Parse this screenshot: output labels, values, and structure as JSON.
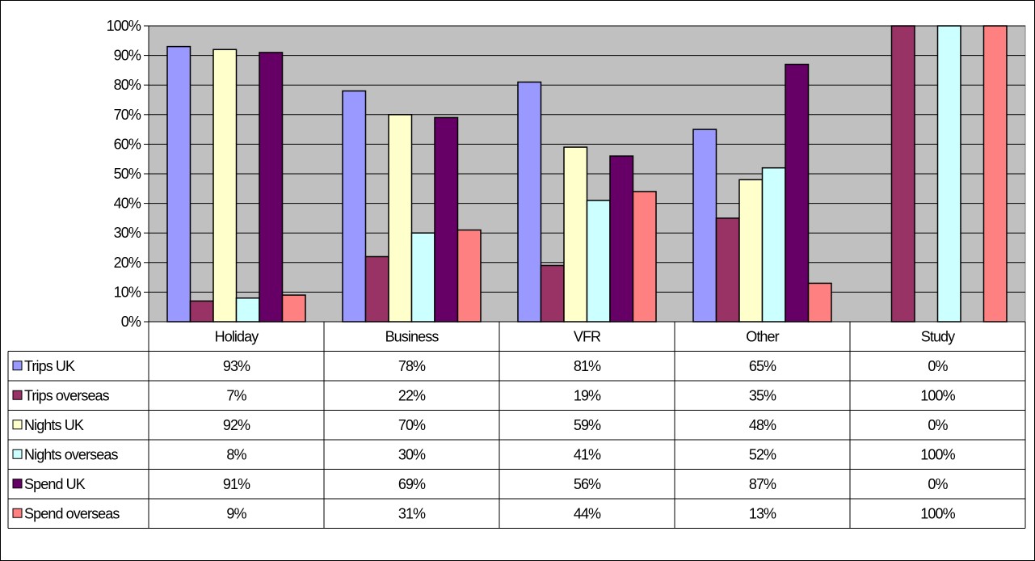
{
  "chart_data": {
    "type": "bar",
    "categories": [
      "Holiday",
      "Business",
      "VFR",
      "Other",
      "Study"
    ],
    "series": [
      {
        "name": "Trips UK",
        "color": "#9999FF",
        "values": [
          93,
          78,
          81,
          65,
          0
        ],
        "labels": [
          "93%",
          "78%",
          "81%",
          "65%",
          "0%"
        ]
      },
      {
        "name": "Trips overseas",
        "color": "#993366",
        "values": [
          7,
          22,
          19,
          35,
          100
        ],
        "labels": [
          "7%",
          "22%",
          "19%",
          "35%",
          "100%"
        ]
      },
      {
        "name": "Nights UK",
        "color": "#FFFFCC",
        "values": [
          92,
          70,
          59,
          48,
          0
        ],
        "labels": [
          "92%",
          "70%",
          "59%",
          "48%",
          "0%"
        ]
      },
      {
        "name": "Nights overseas",
        "color": "#CCFFFF",
        "values": [
          8,
          30,
          41,
          52,
          100
        ],
        "labels": [
          "8%",
          "30%",
          "41%",
          "52%",
          "100%"
        ]
      },
      {
        "name": "Spend UK",
        "color": "#660066",
        "values": [
          91,
          69,
          56,
          87,
          0
        ],
        "labels": [
          "91%",
          "69%",
          "56%",
          "87%",
          "0%"
        ]
      },
      {
        "name": "Spend overseas",
        "color": "#FF8080",
        "values": [
          9,
          31,
          44,
          13,
          100
        ],
        "labels": [
          "9%",
          "31%",
          "44%",
          "13%",
          "100%"
        ]
      }
    ],
    "yticks": [
      "0%",
      "10%",
      "20%",
      "30%",
      "40%",
      "50%",
      "60%",
      "70%",
      "80%",
      "90%",
      "100%"
    ],
    "ylim": [
      0,
      100
    ],
    "plot_background": "#C0C0C0",
    "grid": true,
    "legend": "data-table"
  }
}
